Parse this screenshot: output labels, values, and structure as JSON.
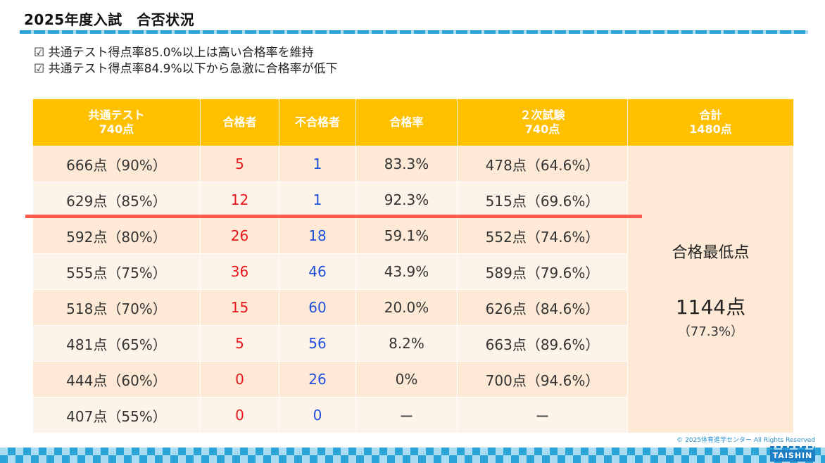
{
  "title": "2025年度入試　合否状況",
  "points": [
    "☑ 共通テスト得点率85.0%以上は高い合格率を維持",
    "☑ 共通テスト得点率84.9%以下から急激に合格率が低下"
  ],
  "table": {
    "headers": [
      {
        "line1": "共通テスト",
        "line2": "740点"
      },
      {
        "line1": "合格者",
        "line2": ""
      },
      {
        "line1": "不合格者",
        "line2": ""
      },
      {
        "line1": "合格率",
        "line2": ""
      },
      {
        "line1": "２次試験",
        "line2": "740点"
      },
      {
        "line1": "合計",
        "line2": "1480点"
      }
    ],
    "rows": [
      {
        "common": "666点（90%）",
        "passed": "5",
        "failed": "1",
        "rate": "83.3%",
        "second": "478点（64.6%）"
      },
      {
        "common": "629点（85%）",
        "passed": "12",
        "failed": "1",
        "rate": "92.3%",
        "second": "515点（69.6%）"
      },
      {
        "common": "592点（80%）",
        "passed": "26",
        "failed": "18",
        "rate": "59.1%",
        "second": "552点（74.6%）"
      },
      {
        "common": "555点（75%）",
        "passed": "36",
        "failed": "46",
        "rate": "43.9%",
        "second": "589点（79.6%）"
      },
      {
        "common": "518点（70%）",
        "passed": "15",
        "failed": "60",
        "rate": "20.0%",
        "second": "626点（84.6%）"
      },
      {
        "common": "481点（65%）",
        "passed": "5",
        "failed": "56",
        "rate": "8.2%",
        "second": "663点（89.6%）"
      },
      {
        "common": "444点（60%）",
        "passed": "0",
        "failed": "26",
        "rate": "0%",
        "second": "700点（94.6%）"
      },
      {
        "common": "407点（55%）",
        "passed": "0",
        "failed": "0",
        "rate": "ー",
        "second": "ー"
      }
    ],
    "summary": {
      "label": "合格最低点",
      "score": "1144点",
      "percent": "（77.3%）"
    }
  },
  "copyright": "© 2025体育進学センター All Rights Reserved",
  "logo": "TAISHIN",
  "colors": {
    "header": "#ffc000",
    "passed": "#e8161d",
    "failed": "#1f4fdc",
    "cut_line": "#ff5a4d",
    "accent": "#2aa3d8"
  }
}
